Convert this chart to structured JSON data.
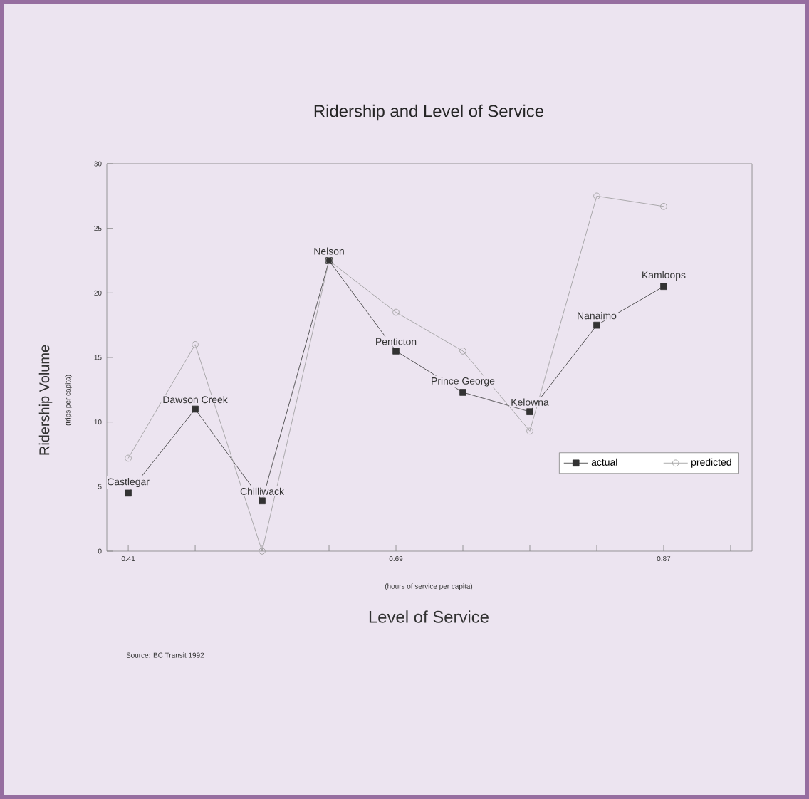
{
  "chart_data": {
    "type": "line",
    "title": "Ridership and Level of Service",
    "xlabel": "Level of Service",
    "ylabel": "Ridership Volume",
    "annotations": [
      "(hours of service per capita)",
      "(trips per capita)",
      "Source: BC Transit 1992"
    ],
    "categories": [
      "0.41",
      null,
      null,
      null,
      "0.69",
      null,
      null,
      null,
      "0.87",
      null
    ],
    "series": [
      {
        "name": "actual",
        "color": "#333333",
        "marker": "square",
        "values": [
          4.5,
          11,
          3.9,
          22.5,
          15.5,
          12.3,
          10.8,
          17.5,
          20.5,
          null
        ],
        "value_labels": [
          "Castlegar",
          "Dawson Creek",
          "Chilliwack",
          "Nelson",
          "Penticton",
          "Prince George",
          "Kelowna",
          "Nanaimo",
          "Kamloops",
          null
        ]
      },
      {
        "name": "predicted",
        "color": "#999999",
        "marker": "circle",
        "values": [
          7.2,
          16,
          0,
          22.5,
          18.5,
          15.5,
          9.3,
          27.5,
          26.7,
          null
        ]
      }
    ],
    "ylim": [
      0,
      30
    ],
    "yticks": [
      0,
      5,
      10,
      15,
      20,
      25,
      30
    ],
    "legend": "bottom right",
    "grid": false
  }
}
